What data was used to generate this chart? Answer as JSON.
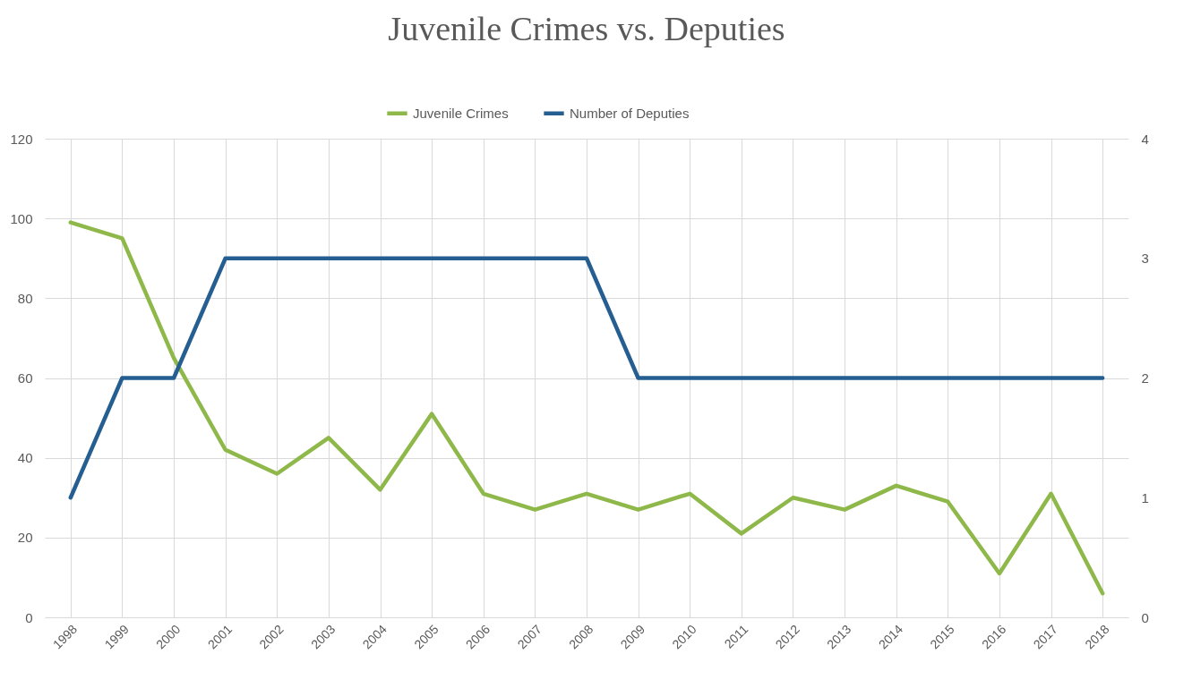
{
  "chart_data": {
    "type": "line",
    "title": "Juvenile Crimes vs. Deputies",
    "categories": [
      "1998",
      "1999",
      "2000",
      "2001",
      "2002",
      "2003",
      "2004",
      "2005",
      "2006",
      "2007",
      "2008",
      "2009",
      "2010",
      "2011",
      "2012",
      "2013",
      "2014",
      "2015",
      "2016",
      "2017",
      "2018"
    ],
    "series": [
      {
        "name": "Juvenile Crimes",
        "color": "#8fb84a",
        "values": [
          99,
          95,
          65,
          42,
          36,
          45,
          32,
          51,
          31,
          27,
          31,
          27,
          31,
          21,
          30,
          27,
          33,
          29,
          11,
          31,
          6
        ]
      },
      {
        "name": "Number of Deputies",
        "color": "#255e91",
        "axis": "y2",
        "values": [
          1,
          2,
          2,
          3,
          3,
          3,
          3,
          3,
          3,
          3,
          3,
          2,
          2,
          2,
          2,
          2,
          2,
          2,
          2,
          2,
          2
        ]
      }
    ],
    "ylim": [
      0,
      120
    ],
    "yticks": [
      0,
      20,
      40,
      60,
      80,
      100,
      120
    ],
    "y2lim": [
      0,
      4
    ],
    "y2ticks": [
      0,
      1,
      2,
      3,
      4
    ],
    "grid": true,
    "legend": "top",
    "marker": "none",
    "line_style": "solid"
  }
}
